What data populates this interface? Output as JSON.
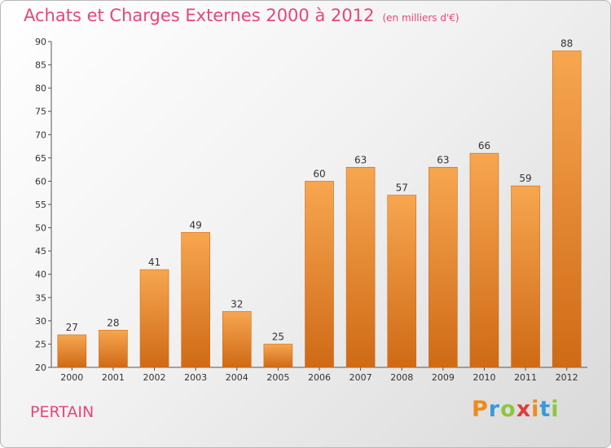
{
  "header": {
    "title": "Achats et Charges Externes 2000 à 2012",
    "unit": "(en milliers d'€)"
  },
  "footer": {
    "commune": "PERTAIN",
    "logo": {
      "letters": [
        "P",
        "r",
        "o",
        "x",
        "i",
        "t",
        "i"
      ],
      "colors": [
        "#f08a1c",
        "#3a9ad9",
        "#8cc63f",
        "#e23b3b",
        "#f08a1c",
        "#3a9ad9",
        "#8cc63f"
      ]
    }
  },
  "colors": {
    "bar_light": "#f7a650",
    "bar_dark": "#cf6a16",
    "title": "#e8457a"
  },
  "chart_data": {
    "type": "bar",
    "categories": [
      "2000",
      "2001",
      "2002",
      "2003",
      "2004",
      "2005",
      "2006",
      "2007",
      "2008",
      "2009",
      "2010",
      "2011",
      "2012"
    ],
    "values": [
      27,
      28,
      41,
      49,
      32,
      25,
      60,
      63,
      57,
      63,
      66,
      59,
      88
    ],
    "data_labels": [
      "27",
      "28",
      "41",
      "49",
      "32",
      "25",
      "60",
      "63",
      "57",
      "63",
      "66",
      "59",
      "88"
    ],
    "yticks": [
      20,
      25,
      30,
      35,
      40,
      45,
      50,
      55,
      60,
      65,
      70,
      75,
      80,
      85,
      90
    ],
    "ylim": [
      20,
      90
    ],
    "grid": false,
    "legend": "none"
  }
}
